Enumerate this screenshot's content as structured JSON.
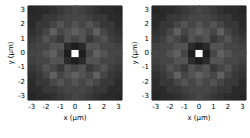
{
  "chart_data": [
    {
      "type": "heatmap",
      "x_label": "x (μm)",
      "y_label": "y (μm)",
      "xlim": [
        -3.25,
        3.25
      ],
      "ylim": [
        -3.25,
        3.25
      ],
      "xticks": [
        -3,
        -2,
        -1,
        0,
        1,
        2,
        3
      ],
      "yticks": [
        -3,
        -2,
        -1,
        0,
        1,
        2,
        3
      ],
      "x": [
        -3,
        -2.5,
        -2,
        -1.5,
        -1,
        -0.5,
        0,
        0.5,
        1,
        1.5,
        2,
        2.5,
        3
      ],
      "y": [
        -3,
        -2.5,
        -2,
        -1.5,
        -1,
        -0.5,
        0,
        0.5,
        1,
        1.5,
        2,
        2.5,
        3
      ],
      "z": [
        [
          0.18,
          0.2,
          0.2,
          0.22,
          0.25,
          0.28,
          0.3,
          0.28,
          0.25,
          0.22,
          0.2,
          0.2,
          0.18
        ],
        [
          0.2,
          0.2,
          0.25,
          0.25,
          0.28,
          0.3,
          0.3,
          0.3,
          0.28,
          0.25,
          0.25,
          0.2,
          0.2
        ],
        [
          0.2,
          0.25,
          0.25,
          0.3,
          0.35,
          0.3,
          0.35,
          0.3,
          0.35,
          0.3,
          0.25,
          0.25,
          0.2
        ],
        [
          0.22,
          0.25,
          0.3,
          0.4,
          0.3,
          0.35,
          0.4,
          0.35,
          0.3,
          0.4,
          0.3,
          0.25,
          0.22
        ],
        [
          0.25,
          0.28,
          0.35,
          0.3,
          0.25,
          0.35,
          0.3,
          0.35,
          0.25,
          0.3,
          0.35,
          0.28,
          0.25
        ],
        [
          0.28,
          0.3,
          0.3,
          0.35,
          0.35,
          0.2,
          0.15,
          0.2,
          0.35,
          0.35,
          0.3,
          0.3,
          0.28
        ],
        [
          0.3,
          0.3,
          0.35,
          0.4,
          0.3,
          0.15,
          1.0,
          0.15,
          0.3,
          0.4,
          0.35,
          0.3,
          0.3
        ],
        [
          0.28,
          0.3,
          0.3,
          0.35,
          0.35,
          0.2,
          0.15,
          0.2,
          0.35,
          0.35,
          0.3,
          0.3,
          0.28
        ],
        [
          0.25,
          0.28,
          0.35,
          0.3,
          0.25,
          0.35,
          0.3,
          0.35,
          0.25,
          0.3,
          0.35,
          0.28,
          0.25
        ],
        [
          0.22,
          0.25,
          0.3,
          0.4,
          0.3,
          0.35,
          0.4,
          0.35,
          0.3,
          0.4,
          0.3,
          0.25,
          0.22
        ],
        [
          0.2,
          0.25,
          0.25,
          0.3,
          0.35,
          0.3,
          0.35,
          0.3,
          0.35,
          0.3,
          0.25,
          0.25,
          0.2
        ],
        [
          0.2,
          0.2,
          0.25,
          0.25,
          0.28,
          0.3,
          0.3,
          0.3,
          0.28,
          0.25,
          0.25,
          0.2,
          0.2
        ],
        [
          0.18,
          0.2,
          0.2,
          0.22,
          0.25,
          0.28,
          0.3,
          0.28,
          0.25,
          0.22,
          0.2,
          0.2,
          0.18
        ]
      ]
    },
    {
      "type": "heatmap",
      "x_label": "x (μm)",
      "y_label": "y (μm)",
      "xlim": [
        -3.25,
        3.25
      ],
      "ylim": [
        -3.25,
        3.25
      ],
      "xticks": [
        -3,
        -2,
        -1,
        0,
        1,
        2,
        3
      ],
      "yticks": [
        -3,
        -2,
        -1,
        0,
        1,
        2,
        3
      ],
      "x": [
        -3,
        -2.5,
        -2,
        -1.5,
        -1,
        -0.5,
        0,
        0.5,
        1,
        1.5,
        2,
        2.5,
        3
      ],
      "y": [
        -3,
        -2.5,
        -2,
        -1.5,
        -1,
        -0.5,
        0,
        0.5,
        1,
        1.5,
        2,
        2.5,
        3
      ],
      "z": [
        [
          0.18,
          0.2,
          0.2,
          0.22,
          0.25,
          0.28,
          0.3,
          0.28,
          0.25,
          0.22,
          0.2,
          0.2,
          0.18
        ],
        [
          0.2,
          0.2,
          0.25,
          0.25,
          0.28,
          0.3,
          0.3,
          0.3,
          0.28,
          0.25,
          0.25,
          0.2,
          0.2
        ],
        [
          0.2,
          0.25,
          0.25,
          0.3,
          0.35,
          0.3,
          0.35,
          0.3,
          0.35,
          0.3,
          0.25,
          0.25,
          0.2
        ],
        [
          0.22,
          0.25,
          0.3,
          0.4,
          0.3,
          0.35,
          0.4,
          0.35,
          0.3,
          0.4,
          0.3,
          0.25,
          0.22
        ],
        [
          0.25,
          0.28,
          0.35,
          0.3,
          0.25,
          0.35,
          0.3,
          0.35,
          0.25,
          0.3,
          0.35,
          0.28,
          0.25
        ],
        [
          0.28,
          0.3,
          0.3,
          0.35,
          0.35,
          0.2,
          0.15,
          0.2,
          0.35,
          0.35,
          0.3,
          0.3,
          0.28
        ],
        [
          0.3,
          0.3,
          0.35,
          0.4,
          0.3,
          0.15,
          1.0,
          0.15,
          0.3,
          0.4,
          0.35,
          0.3,
          0.3
        ],
        [
          0.28,
          0.3,
          0.3,
          0.35,
          0.35,
          0.2,
          0.15,
          0.2,
          0.35,
          0.35,
          0.3,
          0.3,
          0.28
        ],
        [
          0.25,
          0.28,
          0.35,
          0.3,
          0.25,
          0.35,
          0.3,
          0.35,
          0.25,
          0.3,
          0.35,
          0.28,
          0.25
        ],
        [
          0.22,
          0.25,
          0.3,
          0.4,
          0.3,
          0.35,
          0.4,
          0.35,
          0.3,
          0.4,
          0.3,
          0.25,
          0.22
        ],
        [
          0.2,
          0.25,
          0.25,
          0.3,
          0.35,
          0.3,
          0.35,
          0.3,
          0.35,
          0.3,
          0.25,
          0.25,
          0.2
        ],
        [
          0.2,
          0.2,
          0.25,
          0.25,
          0.28,
          0.3,
          0.3,
          0.3,
          0.28,
          0.25,
          0.25,
          0.2,
          0.2
        ],
        [
          0.18,
          0.2,
          0.2,
          0.22,
          0.25,
          0.28,
          0.3,
          0.28,
          0.25,
          0.22,
          0.2,
          0.2,
          0.18
        ]
      ]
    }
  ]
}
